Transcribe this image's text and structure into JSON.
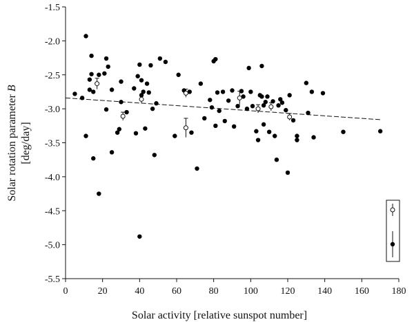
{
  "chart_data": {
    "type": "scatter",
    "xlabel": "Solar activity [relative sunspot number]",
    "ylabel_line1": "Solar rotation parameter ",
    "ylabel_var": "B",
    "ylabel_line2": "[deg/day]",
    "xlim": [
      0,
      180
    ],
    "ylim": [
      -5.5,
      -1.5
    ],
    "x_ticks": [
      0,
      20,
      40,
      60,
      80,
      100,
      120,
      140,
      160,
      180
    ],
    "y_ticks": [
      -5.5,
      -5.0,
      -4.5,
      -4.0,
      -3.5,
      -3.0,
      -2.5,
      -2.0,
      -1.5
    ],
    "x_tick_labels": [
      "0",
      "20",
      "40",
      "60",
      "80",
      "100",
      "120",
      "140",
      "160",
      "180"
    ],
    "y_tick_labels": [
      "-5.5",
      "-5.0",
      "-4.5",
      "-4.0",
      "-3.5",
      "-3.0",
      "-2.5",
      "-2.0",
      "-1.5"
    ],
    "grid": false,
    "legend": {
      "placement": "bottom-right",
      "entries": [
        {
          "marker": "open-circle-with-error-bar"
        },
        {
          "marker": "filled-circle-with-error-bar"
        }
      ]
    },
    "trend_line": {
      "style": "dashed",
      "x": [
        0,
        170
      ],
      "y": [
        -2.84,
        -3.16
      ]
    },
    "series": [
      {
        "marker": "filled",
        "points": [
          {
            "x": 5,
            "y": -2.78
          },
          {
            "x": 9,
            "y": -2.84
          },
          {
            "x": 11,
            "y": -1.93
          },
          {
            "x": 11,
            "y": -3.4
          },
          {
            "x": 13,
            "y": -2.72
          },
          {
            "x": 13,
            "y": -2.57
          },
          {
            "x": 14,
            "y": -2.22
          },
          {
            "x": 14,
            "y": -2.49
          },
          {
            "x": 15,
            "y": -3.73
          },
          {
            "x": 15,
            "y": -2.75
          },
          {
            "x": 18,
            "y": -2.5
          },
          {
            "x": 18,
            "y": -4.25
          },
          {
            "x": 21,
            "y": -2.48
          },
          {
            "x": 22,
            "y": -2.26
          },
          {
            "x": 22,
            "y": -3.01
          },
          {
            "x": 23,
            "y": -2.38
          },
          {
            "x": 25,
            "y": -2.72
          },
          {
            "x": 25,
            "y": -3.64
          },
          {
            "x": 28,
            "y": -3.35
          },
          {
            "x": 29,
            "y": -3.3
          },
          {
            "x": 30,
            "y": -2.6
          },
          {
            "x": 30,
            "y": -2.9
          },
          {
            "x": 33,
            "y": -3.05
          },
          {
            "x": 37,
            "y": -2.7
          },
          {
            "x": 38,
            "y": -3.36
          },
          {
            "x": 39,
            "y": -2.52
          },
          {
            "x": 40,
            "y": -2.35
          },
          {
            "x": 40,
            "y": -4.88
          },
          {
            "x": 41,
            "y": -2.8
          },
          {
            "x": 41,
            "y": -2.58
          },
          {
            "x": 42,
            "y": -2.75
          },
          {
            "x": 43,
            "y": -3.29
          },
          {
            "x": 44,
            "y": -2.63
          },
          {
            "x": 45,
            "y": -2.76
          },
          {
            "x": 46,
            "y": -2.36
          },
          {
            "x": 47,
            "y": -3.0
          },
          {
            "x": 48,
            "y": -3.68
          },
          {
            "x": 49,
            "y": -2.92
          },
          {
            "x": 51,
            "y": -2.26
          },
          {
            "x": 54,
            "y": -2.31
          },
          {
            "x": 59,
            "y": -3.4
          },
          {
            "x": 61,
            "y": -2.5
          },
          {
            "x": 64,
            "y": -2.73
          },
          {
            "x": 67,
            "y": -2.75
          },
          {
            "x": 68,
            "y": -3.35
          },
          {
            "x": 71,
            "y": -3.88
          },
          {
            "x": 73,
            "y": -2.63
          },
          {
            "x": 75,
            "y": -3.14
          },
          {
            "x": 78,
            "y": -2.87
          },
          {
            "x": 79,
            "y": -2.98
          },
          {
            "x": 80,
            "y": -2.3
          },
          {
            "x": 81,
            "y": -2.27
          },
          {
            "x": 81,
            "y": -3.25
          },
          {
            "x": 82,
            "y": -2.76
          },
          {
            "x": 83,
            "y": -3.03
          },
          {
            "x": 85,
            "y": -2.75
          },
          {
            "x": 86,
            "y": -3.18
          },
          {
            "x": 88,
            "y": -2.88
          },
          {
            "x": 90,
            "y": -2.73
          },
          {
            "x": 91,
            "y": -3.26
          },
          {
            "x": 93,
            "y": -2.96
          },
          {
            "x": 95,
            "y": -2.74
          },
          {
            "x": 96,
            "y": -2.82
          },
          {
            "x": 98,
            "y": -3.0
          },
          {
            "x": 99,
            "y": -2.4
          },
          {
            "x": 100,
            "y": -2.75
          },
          {
            "x": 101,
            "y": -2.96
          },
          {
            "x": 103,
            "y": -3.33
          },
          {
            "x": 104,
            "y": -3.46
          },
          {
            "x": 105,
            "y": -2.8
          },
          {
            "x": 106,
            "y": -2.82
          },
          {
            "x": 106,
            "y": -2.37
          },
          {
            "x": 107,
            "y": -2.95
          },
          {
            "x": 107,
            "y": -3.23
          },
          {
            "x": 108,
            "y": -2.9
          },
          {
            "x": 109,
            "y": -2.82
          },
          {
            "x": 110,
            "y": -3.34
          },
          {
            "x": 112,
            "y": -2.89
          },
          {
            "x": 113,
            "y": -3.4
          },
          {
            "x": 114,
            "y": -3.75
          },
          {
            "x": 115,
            "y": -2.95
          },
          {
            "x": 116,
            "y": -2.86
          },
          {
            "x": 117,
            "y": -2.91
          },
          {
            "x": 119,
            "y": -3.02
          },
          {
            "x": 120,
            "y": -3.94
          },
          {
            "x": 121,
            "y": -2.8
          },
          {
            "x": 123,
            "y": -3.17
          },
          {
            "x": 125,
            "y": -3.4
          },
          {
            "x": 125,
            "y": -3.46
          },
          {
            "x": 130,
            "y": -2.62
          },
          {
            "x": 131,
            "y": -3.06
          },
          {
            "x": 133,
            "y": -2.75
          },
          {
            "x": 134,
            "y": -3.42
          },
          {
            "x": 139,
            "y": -2.77
          },
          {
            "x": 150,
            "y": -3.34
          },
          {
            "x": 170,
            "y": -3.33
          }
        ]
      },
      {
        "marker": "open-with-error-bar",
        "points": [
          {
            "x": 17,
            "y": -2.63,
            "err": 0.08
          },
          {
            "x": 31,
            "y": -3.11,
            "err": 0.06
          },
          {
            "x": 41,
            "y": -2.86,
            "err": 0.06
          },
          {
            "x": 65,
            "y": -2.77,
            "err": 0.06
          },
          {
            "x": 65,
            "y": -3.28,
            "err": 0.14
          },
          {
            "x": 94,
            "y": -2.84,
            "err": 0.1
          },
          {
            "x": 104,
            "y": -3.0,
            "err": 0.06
          },
          {
            "x": 111,
            "y": -2.97,
            "err": 0.06
          },
          {
            "x": 121,
            "y": -3.12,
            "err": 0.05
          }
        ]
      }
    ]
  }
}
